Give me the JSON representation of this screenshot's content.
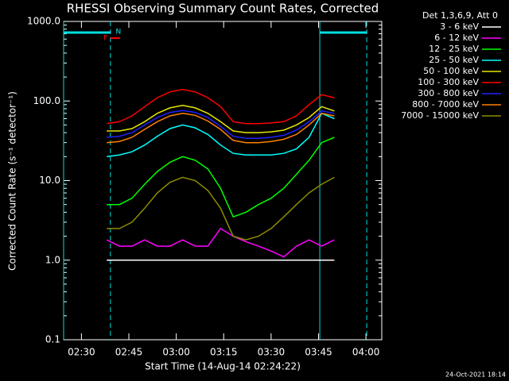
{
  "chart_data": {
    "type": "line",
    "title": "RHESSI Observing Summary Count Rates, Corrected",
    "x_label": "Start Time (14-Aug-14 02:24:22)",
    "y_label": "Corrected Count Rate (s⁻¹ detector⁻¹)",
    "legend_title": "Det 1,3,6,9, Att 0",
    "footer": "24-Oct-2021 18:14",
    "log_y": true,
    "legend": "outside-right",
    "xlim": [
      "02:24:22",
      "04:05:00"
    ],
    "xticks": [
      "02:30",
      "02:45",
      "03:00",
      "03:15",
      "03:30",
      "03:45",
      "04:00"
    ],
    "ylim": [
      0.1,
      1000
    ],
    "yticks": [
      {
        "value": 1000,
        "label": "1000.0"
      },
      {
        "value": 100,
        "label": "100.0"
      },
      {
        "value": 10,
        "label": "10.0"
      },
      {
        "value": 1,
        "label": "1.0"
      },
      {
        "value": 0.1,
        "label": "0.1"
      }
    ],
    "vlines": [
      {
        "x": "02:24:22",
        "style": "solid",
        "color": "#00e0e0"
      },
      {
        "x": "02:39:10",
        "style": "dashed",
        "color": "#00e0e0"
      },
      {
        "x": "03:45:24",
        "style": "solid",
        "color": "#00e0e0"
      },
      {
        "x": "04:00:15",
        "style": "dashed",
        "color": "#00e0e0"
      }
    ],
    "flags": [
      {
        "label": "N",
        "color": "#00e0e0",
        "x": "02:39:10"
      },
      {
        "label": "F",
        "color": "#ff0000",
        "x": "02:39:10"
      }
    ],
    "x": [
      "02:38",
      "02:42",
      "02:46",
      "02:50",
      "02:54",
      "02:58",
      "03:02",
      "03:06",
      "03:10",
      "03:14",
      "03:18",
      "03:22",
      "03:26",
      "03:30",
      "03:34",
      "03:38",
      "03:42",
      "03:46",
      "03:50"
    ],
    "series": [
      {
        "name": "3 - 6 keV",
        "color": "#ffffff",
        "values": [
          1,
          1,
          1,
          1,
          1,
          1,
          1,
          1,
          1,
          1,
          1,
          1,
          1,
          1,
          1,
          1,
          1,
          1,
          1
        ]
      },
      {
        "name": "6 - 12 keV",
        "color": "#ff00ff",
        "values": [
          1.8,
          1.5,
          1.5,
          1.8,
          1.5,
          1.5,
          1.8,
          1.5,
          1.5,
          2.5,
          2,
          1.7,
          1.5,
          1.3,
          1.1,
          1.5,
          1.8,
          1.5,
          1.8
        ]
      },
      {
        "name": "12 - 25 keV",
        "color": "#00ff00",
        "values": [
          5,
          5,
          6,
          9,
          13,
          17,
          20,
          18,
          14,
          8,
          3.5,
          4,
          5,
          6,
          8,
          12,
          18,
          30,
          35
        ]
      },
      {
        "name": "25 - 50 keV",
        "color": "#00ffff",
        "values": [
          20,
          21,
          23,
          28,
          36,
          45,
          50,
          46,
          38,
          28,
          22,
          21,
          21,
          21,
          22,
          25,
          35,
          70,
          60
        ]
      },
      {
        "name": "50 - 100 keV",
        "color": "#e6e600",
        "values": [
          42,
          42,
          45,
          55,
          70,
          82,
          88,
          82,
          70,
          55,
          42,
          40,
          40,
          41,
          43,
          50,
          62,
          85,
          75
        ]
      },
      {
        "name": "100 - 300 keV",
        "color": "#ff0000",
        "values": [
          52,
          55,
          65,
          85,
          110,
          130,
          140,
          130,
          110,
          85,
          55,
          52,
          52,
          53,
          55,
          65,
          90,
          120,
          110
        ]
      },
      {
        "name": "300 - 800 keV",
        "color": "#2020ff",
        "values": [
          35,
          36,
          40,
          50,
          62,
          72,
          76,
          72,
          62,
          48,
          36,
          34,
          34,
          35,
          37,
          43,
          55,
          75,
          70
        ]
      },
      {
        "name": "800 - 7000 keV",
        "color": "#ff8000",
        "values": [
          30,
          31,
          35,
          44,
          55,
          65,
          70,
          66,
          56,
          44,
          32,
          30,
          30,
          31,
          33,
          38,
          50,
          70,
          65
        ]
      },
      {
        "name": "7000 - 15000 keV",
        "color": "#8c8c00",
        "values": [
          2.5,
          2.5,
          3,
          4.5,
          7,
          9.5,
          11,
          10,
          7.5,
          4.5,
          2,
          1.8,
          2,
          2.5,
          3.5,
          5,
          7,
          9,
          11
        ]
      }
    ]
  }
}
